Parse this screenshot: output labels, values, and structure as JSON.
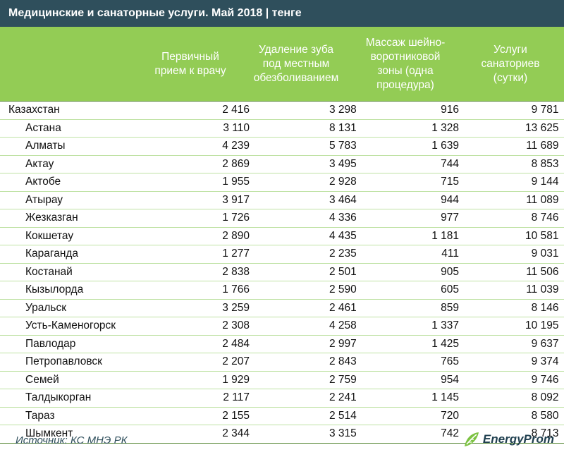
{
  "title": "Медицинские и санаторные услуги. Май 2018 | тенге",
  "columns": [
    [
      "Первичный",
      "прием к врачу"
    ],
    [
      "Удаление зуба",
      "под местным",
      "обезболиванием"
    ],
    [
      "Массаж шейно-",
      "воротниковой",
      "зоны (одна",
      "процедура)"
    ],
    [
      "Услуги",
      "санаториев",
      "(сутки)"
    ]
  ],
  "rows": [
    {
      "name": "Казахстан",
      "v": [
        "2 416",
        "3 298",
        "916",
        "9 781"
      ]
    },
    {
      "name": "Астана",
      "v": [
        "3 110",
        "8 131",
        "1 328",
        "13 625"
      ]
    },
    {
      "name": "Алматы",
      "v": [
        "4 239",
        "5 783",
        "1 639",
        "11 689"
      ]
    },
    {
      "name": "Актау",
      "v": [
        "2 869",
        "3 495",
        "744",
        "8 853"
      ]
    },
    {
      "name": "Актобе",
      "v": [
        "1 955",
        "2 928",
        "715",
        "9 144"
      ]
    },
    {
      "name": "Атырау",
      "v": [
        "3 917",
        "3 464",
        "944",
        "11 089"
      ]
    },
    {
      "name": "Жезказган",
      "v": [
        "1 726",
        "4 336",
        "977",
        "8 746"
      ]
    },
    {
      "name": "Кокшетау",
      "v": [
        "2 890",
        "4 435",
        "1 181",
        "10 581"
      ]
    },
    {
      "name": "Караганда",
      "v": [
        "1 277",
        "2 235",
        "411",
        "9 031"
      ]
    },
    {
      "name": "Костанай",
      "v": [
        "2 838",
        "2 501",
        "905",
        "11 506"
      ]
    },
    {
      "name": "Кызылорда",
      "v": [
        "1 766",
        "2 590",
        "605",
        "11 039"
      ]
    },
    {
      "name": "Уральск",
      "v": [
        "3 259",
        "2 461",
        "859",
        "8 146"
      ]
    },
    {
      "name": "Усть-Каменогорск",
      "v": [
        "2 308",
        "4 258",
        "1 337",
        "10 195"
      ]
    },
    {
      "name": "Павлодар",
      "v": [
        "2 484",
        "2 997",
        "1 425",
        "9 637"
      ]
    },
    {
      "name": "Петропавловск",
      "v": [
        "2 207",
        "2 843",
        "765",
        "9 374"
      ]
    },
    {
      "name": "Семей",
      "v": [
        "1 929",
        "2 759",
        "954",
        "9 746"
      ]
    },
    {
      "name": "Талдыкорган",
      "v": [
        "2 117",
        "2 241",
        "1 145",
        "8 092"
      ]
    },
    {
      "name": "Тараз",
      "v": [
        "2 155",
        "2 514",
        "720",
        "8 580"
      ]
    },
    {
      "name": "Шымкент",
      "v": [
        "2 344",
        "3 315",
        "742",
        "8 713"
      ]
    }
  ],
  "source": "Источник: КС МНЭ РК",
  "logo": "EnergyProm",
  "colors": {
    "title_bg": "#2f4f5c",
    "header_bg": "#93cc55",
    "logo_green": "#7cc242"
  }
}
